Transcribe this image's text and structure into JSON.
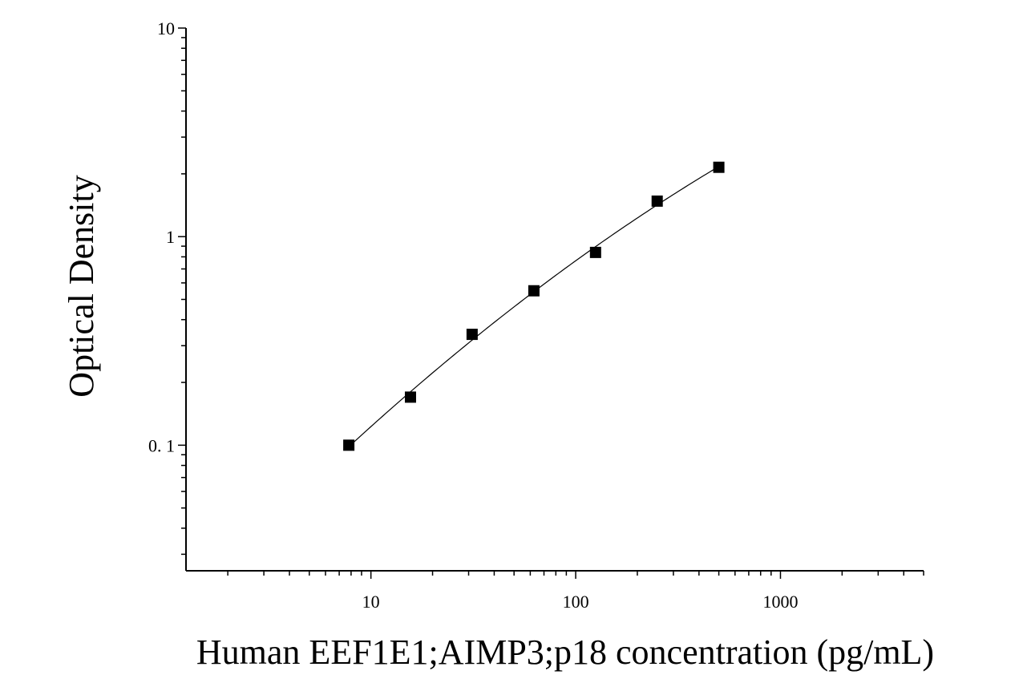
{
  "chart_data": {
    "type": "scatter",
    "xlabel": "Human EEF1E1;AIMP3;p18 concentration (pg/mL)",
    "ylabel": "Optical Density",
    "x_scale": "log",
    "y_scale": "log",
    "xlim": [
      1.25,
      5000
    ],
    "ylim": [
      0.025,
      10
    ],
    "x_ticks": [
      {
        "value": 10,
        "label": "10"
      },
      {
        "value": 100,
        "label": "100"
      },
      {
        "value": 1000,
        "label": "1000"
      }
    ],
    "y_ticks": [
      {
        "value": 0.1,
        "label": "0. 1"
      },
      {
        "value": 1,
        "label": "1"
      },
      {
        "value": 10,
        "label": "10"
      }
    ],
    "grid": false,
    "series": [
      {
        "marker": "square",
        "color": "#000000",
        "x": [
          7.8,
          15.6,
          31.2,
          62.5,
          125,
          250,
          500
        ],
        "y": [
          0.1,
          0.17,
          0.34,
          0.55,
          0.84,
          1.48,
          2.15
        ]
      }
    ],
    "fit_curve": {
      "color": "#000000",
      "x_range": [
        7.8,
        500
      ]
    }
  }
}
